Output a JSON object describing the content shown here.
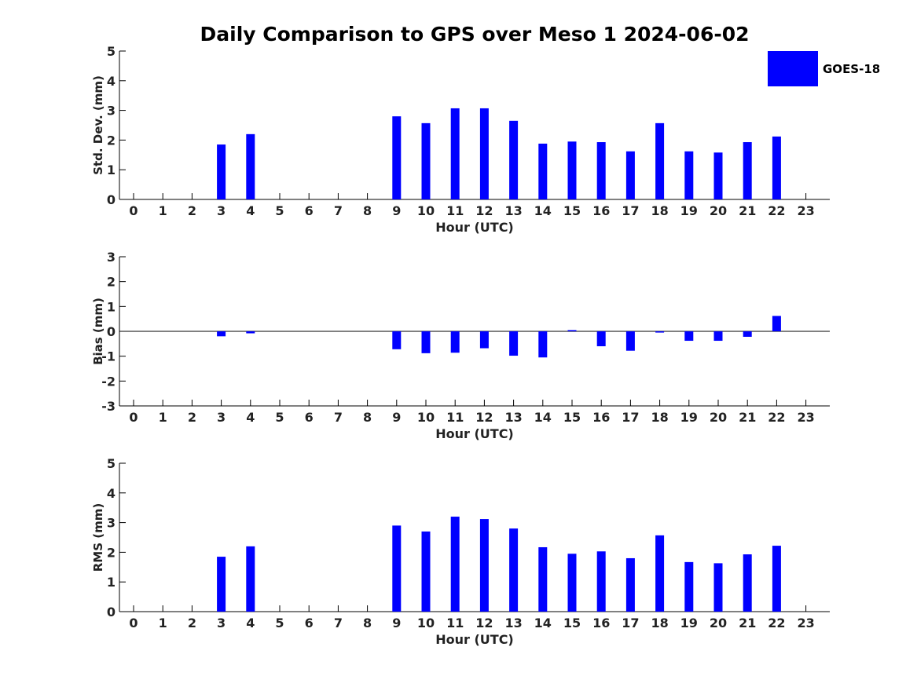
{
  "title": "Daily Comparison to GPS over Meso 1 2024-06-02",
  "legend": {
    "label": "GOES-18",
    "color": "#0000FF"
  },
  "chart_data": [
    {
      "type": "bar",
      "ylabel": "Std. Dev. (mm)",
      "xlabel": "Hour (UTC)",
      "ylim": [
        0,
        5
      ],
      "yticks": [
        0,
        1,
        2,
        3,
        4,
        5
      ],
      "categories": [
        0,
        1,
        2,
        3,
        4,
        5,
        6,
        7,
        8,
        9,
        10,
        11,
        12,
        13,
        14,
        15,
        16,
        17,
        18,
        19,
        20,
        21,
        22,
        23
      ],
      "series": [
        {
          "name": "GOES-18",
          "color": "#0000FF",
          "values": [
            null,
            null,
            null,
            1.85,
            2.2,
            null,
            null,
            null,
            null,
            2.8,
            2.57,
            3.07,
            3.07,
            2.65,
            1.88,
            1.95,
            1.93,
            1.62,
            2.57,
            1.62,
            1.58,
            1.93,
            2.12,
            null
          ]
        }
      ]
    },
    {
      "type": "bar",
      "ylabel": "Bias (mm)",
      "xlabel": "Hour (UTC)",
      "ylim": [
        -3,
        3
      ],
      "yticks": [
        -3,
        -2,
        -1,
        0,
        1,
        2,
        3
      ],
      "categories": [
        0,
        1,
        2,
        3,
        4,
        5,
        6,
        7,
        8,
        9,
        10,
        11,
        12,
        13,
        14,
        15,
        16,
        17,
        18,
        19,
        20,
        21,
        22,
        23
      ],
      "series": [
        {
          "name": "GOES-18",
          "color": "#0000FF",
          "values": [
            null,
            null,
            null,
            -0.2,
            -0.08,
            null,
            null,
            null,
            null,
            -0.72,
            -0.88,
            -0.86,
            -0.68,
            -0.98,
            -1.05,
            0.05,
            -0.6,
            -0.78,
            -0.05,
            -0.38,
            -0.38,
            -0.22,
            0.62,
            null
          ]
        }
      ]
    },
    {
      "type": "bar",
      "ylabel": "RMS (mm)",
      "xlabel": "Hour (UTC)",
      "ylim": [
        0,
        5
      ],
      "yticks": [
        0,
        1,
        2,
        3,
        4,
        5
      ],
      "categories": [
        0,
        1,
        2,
        3,
        4,
        5,
        6,
        7,
        8,
        9,
        10,
        11,
        12,
        13,
        14,
        15,
        16,
        17,
        18,
        19,
        20,
        21,
        22,
        23
      ],
      "series": [
        {
          "name": "GOES-18",
          "color": "#0000FF",
          "values": [
            null,
            null,
            null,
            1.85,
            2.2,
            null,
            null,
            null,
            null,
            2.9,
            2.7,
            3.2,
            3.12,
            2.8,
            2.17,
            1.95,
            2.03,
            1.8,
            2.57,
            1.67,
            1.63,
            1.93,
            2.22,
            null
          ]
        }
      ]
    }
  ]
}
